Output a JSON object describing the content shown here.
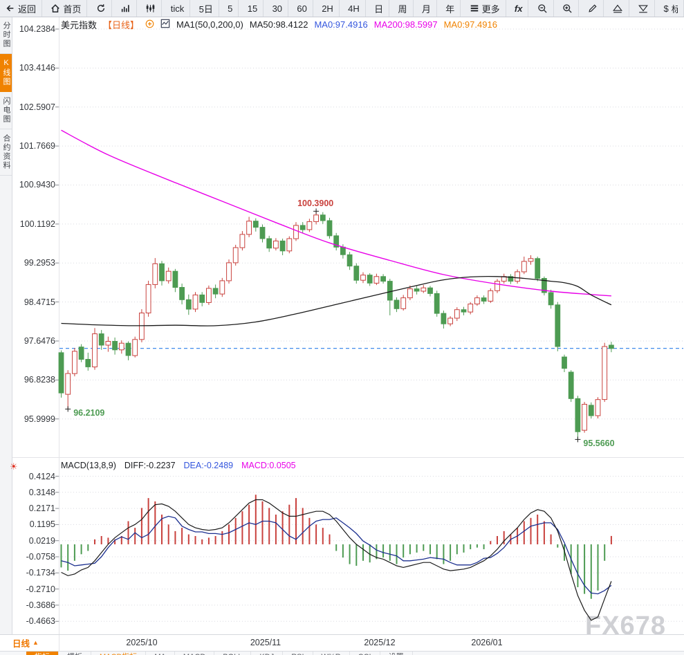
{
  "toolbar": {
    "items": [
      {
        "name": "back-button",
        "icon": "back",
        "label": "返回"
      },
      {
        "name": "home-button",
        "icon": "home",
        "label": "首页"
      },
      {
        "name": "refresh-button",
        "icon": "refresh",
        "label": ""
      },
      {
        "name": "bar-chart-button",
        "icon": "bar-chart",
        "label": ""
      },
      {
        "name": "kline-button",
        "icon": "kline",
        "label": ""
      },
      {
        "name": "tick-button",
        "label": "tick"
      },
      {
        "name": "period-5d-button",
        "label": "5日"
      },
      {
        "name": "period-5-button",
        "label": "5"
      },
      {
        "name": "period-15-button",
        "label": "15"
      },
      {
        "name": "period-30-button",
        "label": "30"
      },
      {
        "name": "period-60-button",
        "label": "60"
      },
      {
        "name": "period-2h-button",
        "label": "2H"
      },
      {
        "name": "period-4h-button",
        "label": "4H"
      },
      {
        "name": "period-day-button",
        "label": "日"
      },
      {
        "name": "period-week-button",
        "label": "周"
      },
      {
        "name": "period-month-button",
        "label": "月"
      },
      {
        "name": "period-year-button",
        "label": "年"
      },
      {
        "name": "more-button",
        "icon": "more",
        "label": "更多"
      },
      {
        "name": "fx-indicator-button",
        "label": "fx",
        "fx": true
      },
      {
        "name": "zoom-out-button",
        "icon": "zoom-out",
        "label": ""
      },
      {
        "name": "zoom-in-button",
        "icon": "zoom-in",
        "label": ""
      },
      {
        "name": "draw-button",
        "icon": "pencil",
        "label": ""
      },
      {
        "name": "limit-up-button",
        "icon": "triangle-up",
        "label": ""
      },
      {
        "name": "limit-down-button",
        "icon": "triangle-down",
        "label": ""
      },
      {
        "name": "currency-button",
        "label": "$",
        "cut": "标"
      }
    ]
  },
  "sidebar": {
    "tabs": [
      {
        "label": "分时图",
        "active": false
      },
      {
        "label": "K线图",
        "active": true
      },
      {
        "label": "闪电图",
        "active": false
      },
      {
        "label": "合约资料",
        "active": false
      }
    ]
  },
  "chart_header": {
    "symbol": "美元指数",
    "period": "【日线】",
    "ma_formula": "MA1(50,0,200,0)",
    "ma50": "MA50:98.4122",
    "ma0_blue": "MA0:97.4916",
    "ma200": "MA200:98.5997",
    "ma0_orange": "MA0:97.4916"
  },
  "macd_header": {
    "formula": "MACD(13,8,9)",
    "diff": "DIFF:-0.2237",
    "dea": "DEA:-0.2489",
    "macd": "MACD:0.0505"
  },
  "corner": {
    "label": "日线",
    "arrow": "▲"
  },
  "bottom_bar": {
    "items": [
      {
        "label": "指标",
        "style": "active"
      },
      {
        "label": "模板",
        "style": ""
      },
      {
        "label": "MACD指标",
        "style": "accent"
      },
      {
        "label": "MA",
        "style": ""
      },
      {
        "label": "MACD",
        "style": ""
      },
      {
        "label": "BOLL",
        "style": ""
      },
      {
        "label": "KDJ",
        "style": ""
      },
      {
        "label": "RSI",
        "style": ""
      },
      {
        "label": "W%R",
        "style": ""
      },
      {
        "label": "CCI",
        "style": ""
      },
      {
        "label": "设置",
        "style": ""
      }
    ]
  },
  "watermark": "FX678",
  "colors": {
    "up": "#c9413d",
    "down": "#4d9b52",
    "ma50": "#1a1a1a",
    "ma200": "#e800e8",
    "diff": "#1a1a1a",
    "dea": "#1b2f8f",
    "accent": "#f08200",
    "price_line": "#2b7de9",
    "grid": "#d9dae0",
    "axis_tick": "#8a8d93",
    "divider": "#e3e4e8"
  },
  "chart_data": {
    "type": "candlestick",
    "symbol": "美元指数",
    "period": "日线",
    "price_ticks": [
      104.2384,
      103.4146,
      102.5907,
      101.7669,
      100.943,
      100.1192,
      99.2953,
      98.4715,
      97.6476,
      96.8238,
      95.9999
    ],
    "current_price": 97.4916,
    "months": [
      {
        "label": "2025/10",
        "index": 12
      },
      {
        "label": "2025/11",
        "index": 30.5
      },
      {
        "label": "2025/12",
        "index": 47.5
      },
      {
        "label": "2026/01",
        "index": 63.5
      }
    ],
    "annotations": [
      {
        "text": "100.3900",
        "index": 38,
        "price": 100.39,
        "type": "high",
        "color": "#c9413d"
      },
      {
        "text": "96.2109",
        "index": 1,
        "price": 96.21,
        "type": "low",
        "color": "#4d9b52"
      },
      {
        "text": "95.5660",
        "index": 77,
        "price": 95.566,
        "type": "low",
        "color": "#4d9b52"
      }
    ],
    "candles": [
      [
        97.4,
        97.45,
        96.45,
        96.55
      ],
      [
        96.52,
        97.03,
        96.21,
        96.96
      ],
      [
        96.96,
        97.5,
        96.9,
        97.43
      ],
      [
        97.52,
        97.58,
        97.2,
        97.26
      ],
      [
        97.26,
        97.4,
        97.02,
        97.1
      ],
      [
        97.1,
        97.92,
        97.04,
        97.8
      ],
      [
        97.8,
        97.88,
        97.46,
        97.56
      ],
      [
        97.56,
        97.74,
        97.42,
        97.64
      ],
      [
        97.64,
        97.72,
        97.36,
        97.46
      ],
      [
        97.46,
        97.66,
        97.38,
        97.6
      ],
      [
        97.6,
        97.64,
        97.24,
        97.34
      ],
      [
        97.34,
        97.74,
        97.3,
        97.68
      ],
      [
        97.68,
        98.32,
        97.62,
        98.24
      ],
      [
        98.24,
        98.92,
        98.16,
        98.84
      ],
      [
        98.84,
        99.4,
        98.76,
        99.28
      ],
      [
        99.28,
        99.34,
        98.82,
        98.92
      ],
      [
        98.92,
        99.2,
        98.86,
        99.12
      ],
      [
        99.12,
        99.17,
        98.68,
        98.78
      ],
      [
        98.78,
        98.86,
        98.42,
        98.52
      ],
      [
        98.52,
        98.63,
        98.2,
        98.32
      ],
      [
        98.32,
        98.68,
        98.26,
        98.62
      ],
      [
        98.62,
        98.68,
        98.38,
        98.46
      ],
      [
        98.46,
        98.82,
        98.41,
        98.76
      ],
      [
        98.76,
        98.84,
        98.55,
        98.64
      ],
      [
        98.64,
        98.98,
        98.58,
        98.92
      ],
      [
        98.92,
        99.37,
        98.86,
        99.3
      ],
      [
        99.3,
        99.68,
        99.24,
        99.62
      ],
      [
        99.62,
        99.97,
        99.56,
        99.9
      ],
      [
        99.9,
        100.27,
        99.84,
        100.18
      ],
      [
        100.18,
        100.24,
        99.96,
        100.05
      ],
      [
        100.05,
        100.11,
        99.73,
        99.81
      ],
      [
        99.81,
        99.87,
        99.53,
        99.61
      ],
      [
        99.61,
        99.82,
        99.56,
        99.76
      ],
      [
        99.76,
        99.81,
        99.46,
        99.55
      ],
      [
        99.55,
        99.86,
        99.5,
        99.81
      ],
      [
        99.81,
        100.16,
        99.76,
        100.09
      ],
      [
        100.09,
        100.16,
        99.92,
        100.0
      ],
      [
        100.0,
        100.23,
        99.95,
        100.17
      ],
      [
        100.17,
        100.39,
        100.11,
        100.31
      ],
      [
        100.31,
        100.37,
        100.12,
        100.19
      ],
      [
        100.19,
        100.25,
        99.81,
        99.87
      ],
      [
        99.87,
        99.93,
        99.56,
        99.63
      ],
      [
        99.63,
        99.69,
        99.39,
        99.47
      ],
      [
        99.47,
        99.53,
        99.15,
        99.23
      ],
      [
        99.23,
        99.29,
        98.86,
        98.93
      ],
      [
        98.93,
        99.1,
        98.87,
        99.04
      ],
      [
        99.04,
        99.08,
        98.81,
        98.87
      ],
      [
        98.87,
        99.07,
        98.83,
        99.01
      ],
      [
        99.01,
        99.06,
        98.86,
        98.91
      ],
      [
        98.91,
        98.96,
        98.19,
        98.51
      ],
      [
        98.51,
        98.57,
        98.26,
        98.33
      ],
      [
        98.33,
        98.62,
        98.29,
        98.56
      ],
      [
        98.56,
        98.82,
        98.51,
        98.75
      ],
      [
        98.75,
        98.81,
        98.63,
        98.7
      ],
      [
        98.7,
        98.83,
        98.66,
        98.77
      ],
      [
        98.77,
        98.81,
        98.59,
        98.65
      ],
      [
        98.65,
        98.71,
        98.16,
        98.23
      ],
      [
        98.23,
        98.29,
        97.91,
        98.01
      ],
      [
        98.01,
        98.17,
        97.96,
        98.13
      ],
      [
        98.13,
        98.36,
        98.07,
        98.31
      ],
      [
        98.31,
        98.37,
        98.19,
        98.26
      ],
      [
        98.26,
        98.47,
        98.21,
        98.43
      ],
      [
        98.43,
        98.61,
        98.39,
        98.56
      ],
      [
        98.56,
        98.61,
        98.43,
        98.49
      ],
      [
        98.49,
        98.76,
        98.45,
        98.71
      ],
      [
        98.71,
        98.96,
        98.66,
        98.91
      ],
      [
        98.91,
        99.07,
        98.86,
        99.01
      ],
      [
        99.01,
        99.06,
        98.85,
        98.91
      ],
      [
        98.91,
        99.16,
        98.86,
        99.11
      ],
      [
        99.11,
        99.43,
        99.06,
        99.33
      ],
      [
        99.33,
        99.46,
        99.26,
        99.39
      ],
      [
        99.39,
        99.43,
        98.91,
        98.97
      ],
      [
        98.97,
        99.01,
        98.61,
        98.67
      ],
      [
        98.67,
        98.73,
        98.33,
        98.41
      ],
      [
        98.41,
        98.47,
        97.43,
        97.53
      ],
      [
        97.31,
        97.36,
        96.99,
        97.07
      ],
      [
        96.99,
        97.03,
        96.36,
        96.43
      ],
      [
        96.43,
        96.49,
        95.566,
        95.73
      ],
      [
        95.76,
        96.36,
        95.71,
        96.31
      ],
      [
        96.29,
        96.35,
        96.01,
        96.07
      ],
      [
        96.07,
        96.46,
        96.01,
        96.41
      ],
      [
        96.41,
        97.61,
        96.36,
        97.53
      ],
      [
        97.56,
        97.63,
        97.41,
        97.49
      ]
    ],
    "ma50_points": [
      [
        0,
        98.02
      ],
      [
        5,
        97.99
      ],
      [
        11,
        97.97
      ],
      [
        17,
        97.98
      ],
      [
        23,
        97.97
      ],
      [
        29,
        98.05
      ],
      [
        35,
        98.22
      ],
      [
        41,
        98.42
      ],
      [
        47,
        98.62
      ],
      [
        53,
        98.82
      ],
      [
        57,
        98.94
      ],
      [
        61,
        99.0
      ],
      [
        65,
        99.01
      ],
      [
        69,
        98.97
      ],
      [
        73,
        98.91
      ],
      [
        75,
        98.88
      ],
      [
        77,
        98.8
      ],
      [
        79,
        98.62
      ],
      [
        82,
        98.41
      ]
    ],
    "ma200_points": [
      [
        0,
        102.1
      ],
      [
        7,
        101.58
      ],
      [
        16,
        101.05
      ],
      [
        24,
        100.6
      ],
      [
        32,
        100.15
      ],
      [
        40,
        99.72
      ],
      [
        49,
        99.35
      ],
      [
        57,
        99.05
      ],
      [
        65,
        98.85
      ],
      [
        73,
        98.7
      ],
      [
        79,
        98.63
      ],
      [
        82,
        98.6
      ]
    ],
    "macd": {
      "params": "MACD(13,8,9)",
      "ticks": [
        0.4124,
        0.3148,
        0.2171,
        0.1195,
        0.0219,
        -0.0758,
        -0.1734,
        -0.271,
        -0.3686,
        -0.4663
      ],
      "diff": [
        -0.17,
        -0.19,
        -0.18,
        -0.155,
        -0.14,
        -0.1,
        -0.05,
        0.0,
        0.04,
        0.07,
        0.1,
        0.12,
        0.15,
        0.2,
        0.24,
        0.245,
        0.23,
        0.2,
        0.16,
        0.12,
        0.1,
        0.09,
        0.085,
        0.09,
        0.1,
        0.13,
        0.17,
        0.21,
        0.25,
        0.27,
        0.27,
        0.25,
        0.22,
        0.19,
        0.17,
        0.17,
        0.18,
        0.19,
        0.2,
        0.2,
        0.18,
        0.14,
        0.09,
        0.04,
        0.0,
        -0.03,
        -0.06,
        -0.08,
        -0.09,
        -0.11,
        -0.13,
        -0.14,
        -0.13,
        -0.12,
        -0.11,
        -0.11,
        -0.13,
        -0.15,
        -0.16,
        -0.155,
        -0.15,
        -0.14,
        -0.12,
        -0.1,
        -0.07,
        -0.03,
        0.02,
        0.06,
        0.1,
        0.15,
        0.19,
        0.21,
        0.2,
        0.16,
        0.08,
        -0.04,
        -0.18,
        -0.31,
        -0.4,
        -0.46,
        -0.44,
        -0.33,
        -0.2237
      ],
      "hist": [
        -0.14,
        -0.16,
        -0.1,
        -0.06,
        -0.04,
        0.03,
        0.05,
        0.04,
        0.03,
        0.05,
        0.14,
        0.1,
        0.22,
        0.28,
        0.26,
        0.18,
        0.12,
        0.08,
        0.1,
        0.06,
        0.05,
        0.03,
        0.04,
        0.05,
        0.08,
        0.12,
        0.16,
        0.2,
        0.24,
        0.3,
        0.26,
        0.22,
        0.18,
        0.2,
        0.24,
        0.28,
        0.22,
        0.16,
        0.12,
        0.1,
        0.06,
        -0.04,
        -0.08,
        -0.12,
        -0.13,
        -0.1,
        -0.11,
        -0.09,
        -0.08,
        -0.1,
        -0.12,
        -0.08,
        -0.06,
        -0.05,
        -0.04,
        -0.06,
        -0.09,
        -0.12,
        -0.1,
        -0.06,
        -0.05,
        -0.03,
        -0.02,
        -0.03,
        0.02,
        0.05,
        0.08,
        0.06,
        0.1,
        0.14,
        0.16,
        0.18,
        0.14,
        0.06,
        -0.02,
        -0.1,
        -0.18,
        -0.26,
        -0.3,
        -0.33,
        -0.28,
        -0.1,
        0.0505
      ]
    }
  }
}
